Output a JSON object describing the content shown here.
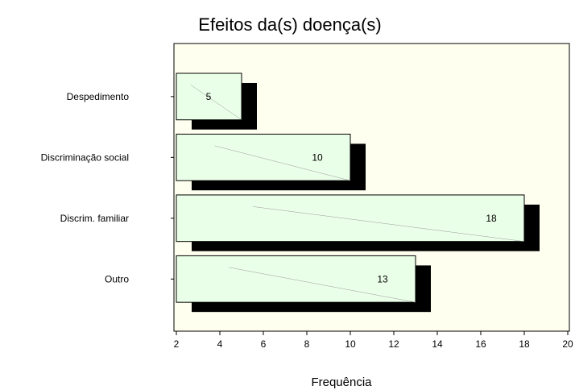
{
  "chart_data": {
    "type": "bar",
    "orientation": "horizontal",
    "title": "Efeitos da(s) doença(s)",
    "xlabel": "Frequência",
    "ylabel": "",
    "categories": [
      "Despedimento",
      "Discriminação social",
      "Discrim. familiar",
      "Outro"
    ],
    "values": [
      5,
      10,
      18,
      13
    ],
    "data_labels": [
      "5",
      "10",
      "18",
      "13"
    ],
    "xlim": [
      2,
      20
    ],
    "x_ticks": [
      2,
      4,
      6,
      8,
      10,
      12,
      14,
      16,
      18,
      20
    ],
    "x_tick_labels": [
      "2",
      "4",
      "6",
      "8",
      "10",
      "12",
      "14",
      "16",
      "18",
      "20"
    ],
    "grid": false,
    "legend": "none",
    "colors": {
      "plot_background": "#fffff0",
      "bar_fill": "#eaffe8",
      "bar_shadow": "#000000",
      "bar_outline": "#000000"
    }
  }
}
